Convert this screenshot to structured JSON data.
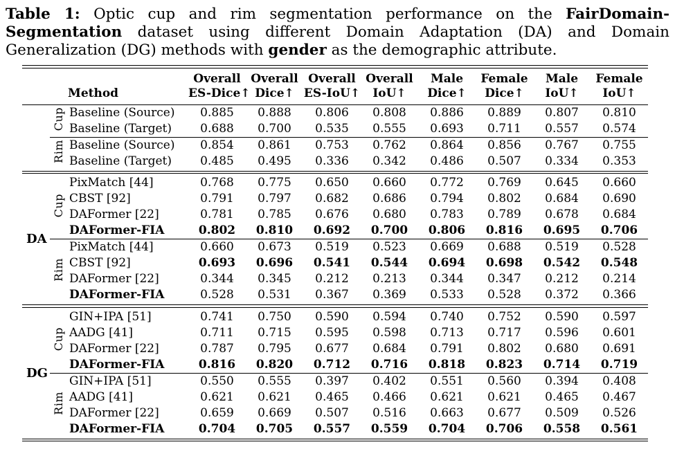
{
  "colors": {
    "text": "#000000",
    "background": "#ffffff",
    "rule": "#000000"
  },
  "caption": {
    "segments": [
      {
        "text": "Table 1:",
        "bold": true
      },
      {
        "text": " Optic cup and rim segmentation performance on the ",
        "bold": false
      },
      {
        "text": "FairDomain-Segmentation",
        "bold": true
      },
      {
        "text": " dataset using different Domain Adaptation (DA) and Domain Generalization (DG) methods with ",
        "bold": false
      },
      {
        "text": "gender",
        "bold": true
      },
      {
        "text": " as the demographic attribute.",
        "bold": false
      }
    ]
  },
  "table": {
    "method_header": "Method",
    "columns": [
      {
        "line1": "Overall",
        "line2": "ES-Dice↑"
      },
      {
        "line1": "Overall",
        "line2": "Dice↑"
      },
      {
        "line1": "Overall",
        "line2": "ES-IoU↑"
      },
      {
        "line1": "Overall",
        "line2": "IoU↑"
      },
      {
        "line1": "Male",
        "line2": "Dice↑"
      },
      {
        "line1": "Female",
        "line2": "Dice↑"
      },
      {
        "line1": "Male",
        "line2": "IoU↑"
      },
      {
        "line1": "Female",
        "line2": "IoU↑"
      }
    ],
    "sections": [
      {
        "group": "",
        "subsections": [
          {
            "organ": "Cup",
            "rows": [
              {
                "method": "Baseline (Source)",
                "mb": false,
                "vb": false,
                "values": [
                  "0.885",
                  "0.888",
                  "0.806",
                  "0.808",
                  "0.886",
                  "0.889",
                  "0.807",
                  "0.810"
                ]
              },
              {
                "method": "Baseline (Target)",
                "mb": false,
                "vb": false,
                "values": [
                  "0.688",
                  "0.700",
                  "0.535",
                  "0.555",
                  "0.693",
                  "0.711",
                  "0.557",
                  "0.574"
                ]
              }
            ]
          },
          {
            "organ": "Rim",
            "rows": [
              {
                "method": "Baseline (Source)",
                "mb": false,
                "vb": false,
                "values": [
                  "0.854",
                  "0.861",
                  "0.753",
                  "0.762",
                  "0.864",
                  "0.856",
                  "0.767",
                  "0.755"
                ]
              },
              {
                "method": "Baseline (Target)",
                "mb": false,
                "vb": false,
                "values": [
                  "0.485",
                  "0.495",
                  "0.336",
                  "0.342",
                  "0.486",
                  "0.507",
                  "0.334",
                  "0.353"
                ]
              }
            ]
          }
        ]
      },
      {
        "group": "DA",
        "subsections": [
          {
            "organ": "Cup",
            "rows": [
              {
                "method": "PixMatch [44]",
                "mb": false,
                "vb": false,
                "values": [
                  "0.768",
                  "0.775",
                  "0.650",
                  "0.660",
                  "0.772",
                  "0.769",
                  "0.645",
                  "0.660"
                ]
              },
              {
                "method": "CBST [92]",
                "mb": false,
                "vb": false,
                "values": [
                  "0.791",
                  "0.797",
                  "0.682",
                  "0.686",
                  "0.794",
                  "0.802",
                  "0.684",
                  "0.690"
                ]
              },
              {
                "method": "DAFormer [22]",
                "mb": false,
                "vb": false,
                "values": [
                  "0.781",
                  "0.785",
                  "0.676",
                  "0.680",
                  "0.783",
                  "0.789",
                  "0.678",
                  "0.684"
                ]
              },
              {
                "method": "DAFormer-FIA",
                "mb": true,
                "vb": true,
                "values": [
                  "0.802",
                  "0.810",
                  "0.692",
                  "0.700",
                  "0.806",
                  "0.816",
                  "0.695",
                  "0.706"
                ]
              }
            ]
          },
          {
            "organ": "Rim",
            "rows": [
              {
                "method": "PixMatch [44]",
                "mb": false,
                "vb": false,
                "values": [
                  "0.660",
                  "0.673",
                  "0.519",
                  "0.523",
                  "0.669",
                  "0.688",
                  "0.519",
                  "0.528"
                ]
              },
              {
                "method": "CBST [92]",
                "mb": false,
                "vb": true,
                "values": [
                  "0.693",
                  "0.696",
                  "0.541",
                  "0.544",
                  "0.694",
                  "0.698",
                  "0.542",
                  "0.548"
                ]
              },
              {
                "method": "DAFormer [22]",
                "mb": false,
                "vb": false,
                "values": [
                  "0.344",
                  "0.345",
                  "0.212",
                  "0.213",
                  "0.344",
                  "0.347",
                  "0.212",
                  "0.214"
                ]
              },
              {
                "method": "DAFormer-FIA",
                "mb": true,
                "vb": false,
                "values": [
                  "0.528",
                  "0.531",
                  "0.367",
                  "0.369",
                  "0.533",
                  "0.528",
                  "0.372",
                  "0.366"
                ]
              }
            ]
          }
        ]
      },
      {
        "group": "DG",
        "subsections": [
          {
            "organ": "Cup",
            "rows": [
              {
                "method": "GIN+IPA [51]",
                "mb": false,
                "vb": false,
                "values": [
                  "0.741",
                  "0.750",
                  "0.590",
                  "0.594",
                  "0.740",
                  "0.752",
                  "0.590",
                  "0.597"
                ]
              },
              {
                "method": "AADG [41]",
                "mb": false,
                "vb": false,
                "values": [
                  "0.711",
                  "0.715",
                  "0.595",
                  "0.598",
                  "0.713",
                  "0.717",
                  "0.596",
                  "0.601"
                ]
              },
              {
                "method": "DAFormer [22]",
                "mb": false,
                "vb": false,
                "values": [
                  "0.787",
                  "0.795",
                  "0.677",
                  "0.684",
                  "0.791",
                  "0.802",
                  "0.680",
                  "0.691"
                ]
              },
              {
                "method": "DAFormer-FIA",
                "mb": true,
                "vb": true,
                "values": [
                  "0.816",
                  "0.820",
                  "0.712",
                  "0.716",
                  "0.818",
                  "0.823",
                  "0.714",
                  "0.719"
                ]
              }
            ]
          },
          {
            "organ": "Rim",
            "rows": [
              {
                "method": "GIN+IPA [51]",
                "mb": false,
                "vb": false,
                "values": [
                  "0.550",
                  "0.555",
                  "0.397",
                  "0.402",
                  "0.551",
                  "0.560",
                  "0.394",
                  "0.408"
                ]
              },
              {
                "method": "AADG [41]",
                "mb": false,
                "vb": false,
                "values": [
                  "0.621",
                  "0.621",
                  "0.465",
                  "0.466",
                  "0.621",
                  "0.621",
                  "0.465",
                  "0.467"
                ]
              },
              {
                "method": "DAFormer [22]",
                "mb": false,
                "vb": false,
                "values": [
                  "0.659",
                  "0.669",
                  "0.507",
                  "0.516",
                  "0.663",
                  "0.677",
                  "0.509",
                  "0.526"
                ]
              },
              {
                "method": "DAFormer-FIA",
                "mb": true,
                "vb": true,
                "values": [
                  "0.704",
                  "0.705",
                  "0.557",
                  "0.559",
                  "0.704",
                  "0.706",
                  "0.558",
                  "0.561"
                ]
              }
            ]
          }
        ]
      }
    ]
  }
}
